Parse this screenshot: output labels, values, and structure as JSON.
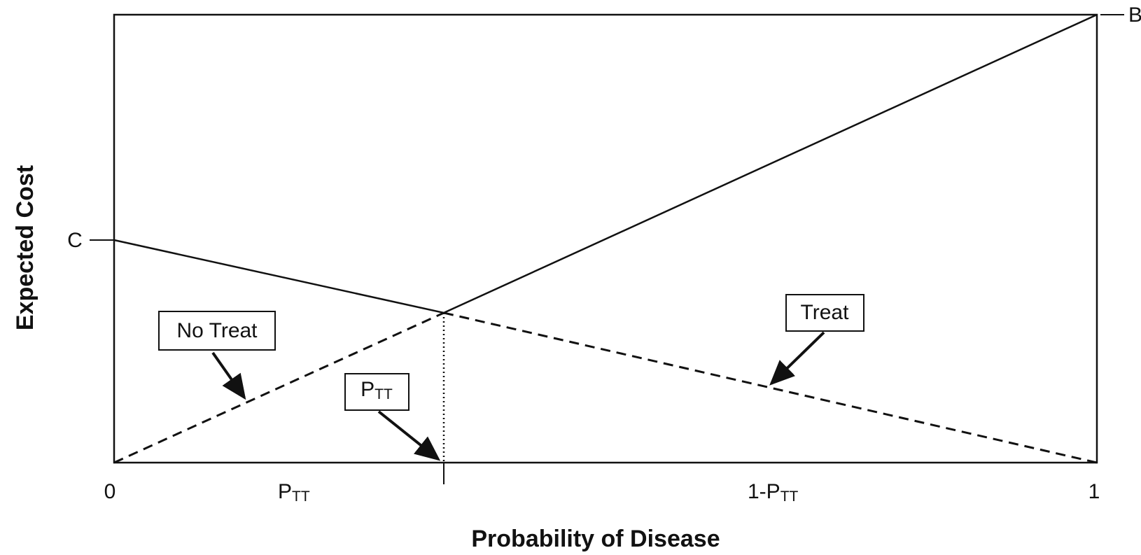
{
  "axes": {
    "x_title": "Probability of Disease",
    "y_title": "Expected Cost",
    "x_ticks": [
      {
        "text": "0"
      },
      {
        "text": "P",
        "sub": "TT"
      },
      {
        "text": "1-P",
        "sub": "TT"
      },
      {
        "text": "1"
      }
    ],
    "y_marks": [
      {
        "text": "C"
      },
      {
        "text": "B"
      }
    ]
  },
  "annotations": [
    {
      "text": "No Treat"
    },
    {
      "text": "P",
      "sub": "TT"
    },
    {
      "text": "Treat"
    }
  ]
}
